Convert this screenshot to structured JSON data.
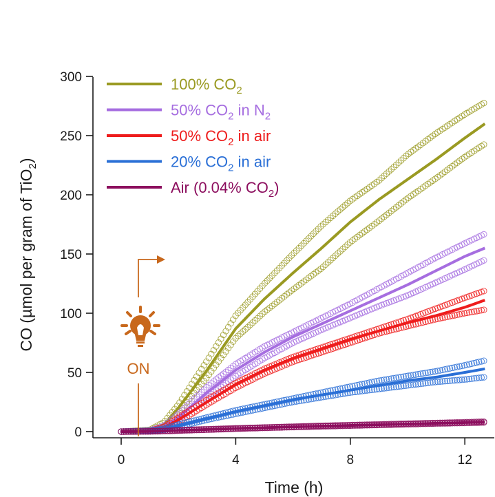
{
  "chart_data": {
    "type": "line",
    "title": "",
    "xlabel": "Time (h)",
    "ylabel": {
      "main": "CO (µmol per gram of TiO",
      "sub": "2",
      "tail": ")"
    },
    "xlim": [
      -1,
      12.7
    ],
    "ylim": [
      -5,
      300
    ],
    "x_ticks": [
      0,
      4,
      8,
      12
    ],
    "y_ticks": [
      0,
      50,
      100,
      150,
      200,
      250,
      300
    ],
    "x_tick_labels": [
      "0",
      "4",
      "8",
      "12"
    ],
    "y_tick_labels": [
      "0",
      "50",
      "100",
      "150",
      "200",
      "250",
      "300"
    ],
    "grid": false,
    "legend_position": "top-left",
    "light_on": {
      "label": "ON",
      "time_h": 0.6
    },
    "series": [
      {
        "name": "100% CO2",
        "label": {
          "pre": "100% CO",
          "sub": "2",
          "post": ""
        },
        "color": "#9a9a22",
        "x": [
          0,
          1,
          1.5,
          2,
          3,
          4,
          5,
          6,
          7,
          8,
          9,
          10,
          11,
          12,
          12.7
        ],
        "mean": [
          0,
          1,
          6,
          20,
          52,
          87,
          112,
          134,
          155,
          177,
          196,
          213,
          230,
          248,
          260
        ],
        "upper": [
          0,
          1.5,
          8,
          23,
          60,
          98,
          125,
          150,
          174,
          195,
          212,
          234,
          252,
          268,
          278
        ],
        "lower": [
          0,
          0.5,
          4,
          16,
          46,
          79,
          101,
          120,
          138,
          160,
          178,
          197,
          214,
          232,
          243
        ]
      },
      {
        "name": "50% CO2 in N2",
        "label": {
          "pre": "50% CO",
          "sub": "2",
          "post": " in N",
          "sub2": "2"
        },
        "color": "#a66ee0",
        "x": [
          0,
          1,
          1.5,
          2,
          3,
          4,
          5,
          6,
          7,
          8,
          9,
          10,
          11,
          12,
          12.7
        ],
        "mean": [
          0,
          0.5,
          4,
          12,
          33,
          52,
          67,
          80,
          91,
          102,
          113,
          124,
          136,
          148,
          155
        ],
        "upper": [
          0,
          1,
          5,
          15,
          38,
          57,
          72,
          84,
          96,
          108,
          121,
          134,
          147,
          159,
          167
        ],
        "lower": [
          0,
          0.3,
          3,
          10,
          29,
          47,
          62,
          75,
          86,
          96,
          106,
          115,
          126,
          137,
          145
        ]
      },
      {
        "name": "50% CO2 in air",
        "label": {
          "pre": "50% CO",
          "sub": "2",
          "post": " in air"
        },
        "color": "#ee1c1c",
        "x": [
          0,
          1,
          1.5,
          2,
          3,
          4,
          5,
          6,
          7,
          8,
          9,
          10,
          11,
          12,
          12.7
        ],
        "mean": [
          0,
          0.3,
          3,
          10,
          25,
          40,
          52,
          62,
          70,
          78,
          85,
          92,
          98,
          105,
          111
        ],
        "upper": [
          0,
          0.5,
          4,
          12,
          27,
          41,
          53,
          63,
          71,
          79,
          87,
          95,
          104,
          113,
          119
        ],
        "lower": [
          0,
          0.2,
          2,
          8,
          23,
          37,
          49,
          59,
          67,
          75,
          83,
          89,
          95,
          100,
          103
        ]
      },
      {
        "name": "20% CO2 in air",
        "label": {
          "pre": "20% CO",
          "sub": "2",
          "post": " in air"
        },
        "color": "#2a6fd6",
        "x": [
          0,
          1,
          1.5,
          2,
          3,
          4,
          5,
          6,
          7,
          8,
          9,
          10,
          11,
          12,
          12.7
        ],
        "mean": [
          0,
          0.5,
          2,
          5,
          11,
          17,
          22,
          27,
          31,
          35,
          39,
          43,
          46,
          50,
          53
        ],
        "upper": [
          0,
          0.6,
          2.5,
          6,
          12,
          18,
          23,
          28,
          33,
          38,
          43,
          47,
          51,
          56,
          60
        ],
        "lower": [
          0,
          0.4,
          1.5,
          4,
          10,
          15,
          20,
          25,
          29,
          33,
          36,
          39,
          42,
          44,
          46
        ]
      },
      {
        "name": "Air (0.04% CO2)",
        "label": {
          "pre": "Air (0.04% CO",
          "sub": "2",
          "post": ")"
        },
        "color": "#8c0e5e",
        "x": [
          0,
          1,
          1.5,
          2,
          3,
          4,
          5,
          6,
          7,
          8,
          9,
          10,
          11,
          12,
          12.7
        ],
        "mean": [
          0,
          0.2,
          0.5,
          1,
          1.8,
          2.6,
          3.3,
          4,
          4.6,
          5.2,
          5.8,
          6.4,
          7,
          7.6,
          8
        ],
        "upper": [
          0,
          0.3,
          0.6,
          1.2,
          2,
          2.8,
          3.5,
          4.2,
          4.9,
          5.5,
          6.1,
          6.7,
          7.3,
          7.9,
          8.4
        ],
        "lower": [
          0,
          0.1,
          0.4,
          0.8,
          1.6,
          2.4,
          3.1,
          3.8,
          4.4,
          5,
          5.6,
          6.2,
          6.8,
          7.3,
          7.7
        ]
      }
    ]
  },
  "colors": {
    "axis": "#1a1a1a",
    "annotation": "#c8681c"
  },
  "icons": {
    "light": "lightbulb-icon",
    "arrow": "bent-arrow-icon"
  }
}
